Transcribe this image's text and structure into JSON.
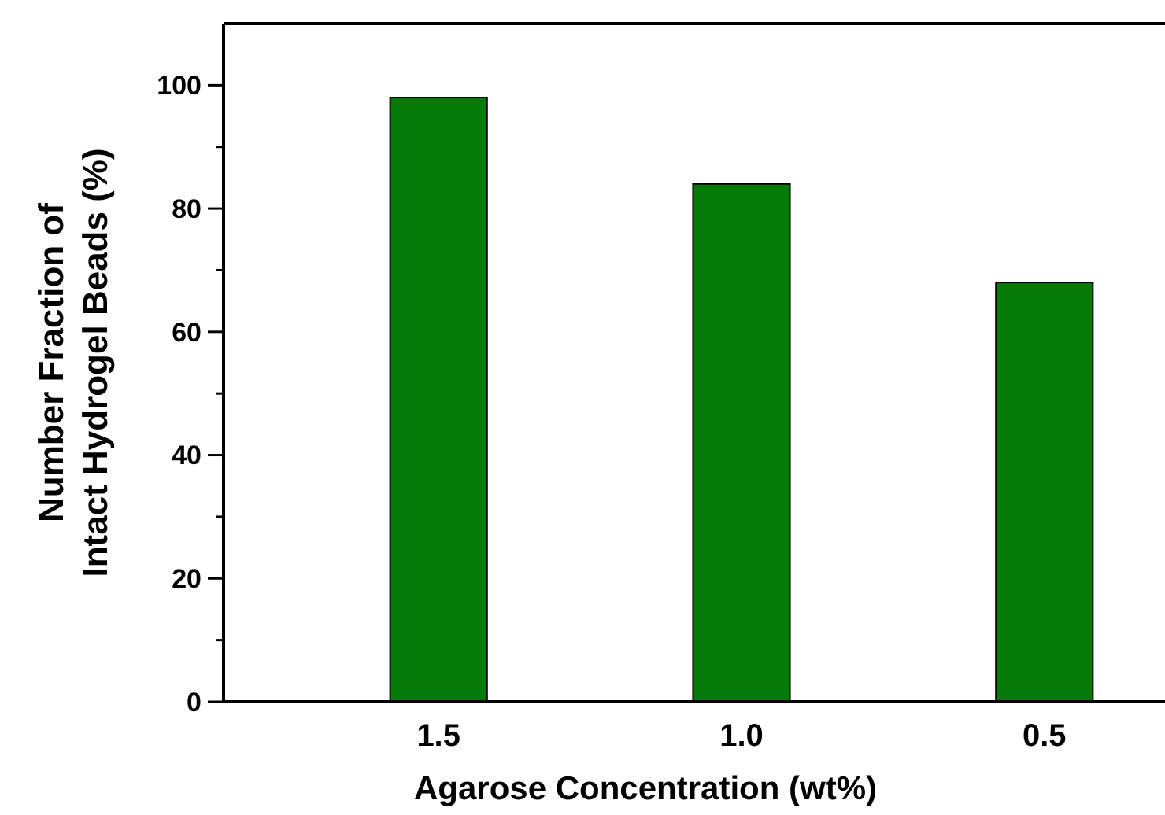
{
  "chart_data": {
    "type": "bar",
    "xlabel": "Agarose Concentration (wt%)",
    "ylabel": "Number Fraction of\nIntact Hydrogel Beads (%)",
    "categories": [
      "1.5",
      "1.0",
      "0.5"
    ],
    "values": [
      98,
      84,
      68
    ],
    "color": "#067a06",
    "ylim": [
      0,
      110
    ],
    "yticks": [
      0,
      {
        "value": 10,
        "label": null
      },
      20,
      {
        "value": 30,
        "label": null
      },
      40,
      {
        "value": 50,
        "label": null
      },
      60,
      {
        "value": 70,
        "label": null
      },
      80,
      {
        "value": 90,
        "label": null
      },
      100
    ],
    "grid": false
  }
}
